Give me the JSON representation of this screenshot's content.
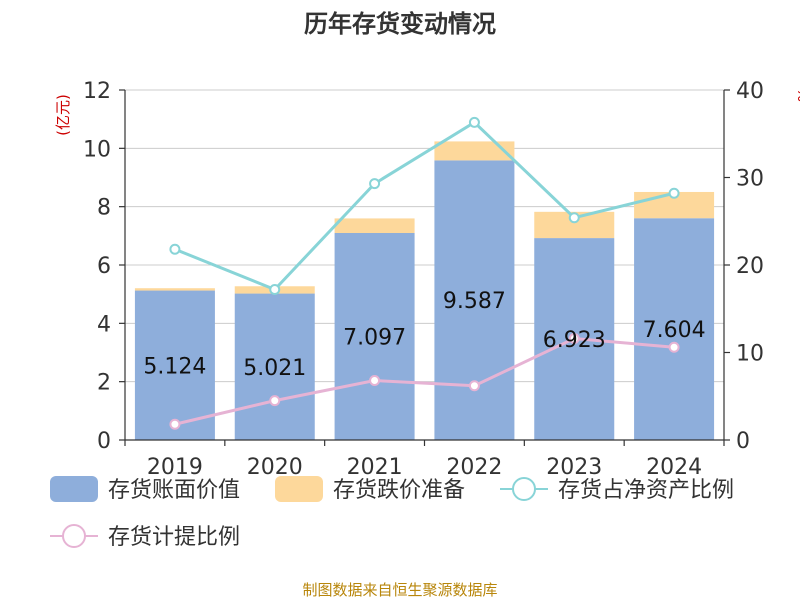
{
  "chart_data": {
    "type": "bar",
    "title": "历年存货变动情况",
    "categories": [
      "2019",
      "2020",
      "2021",
      "2022",
      "2023",
      "2024"
    ],
    "left_axis": {
      "unit": "(亿元)",
      "ylim": [
        0,
        12
      ],
      "ticks": [
        "0",
        "2",
        "4",
        "6",
        "8",
        "10",
        "12"
      ]
    },
    "right_axis": {
      "unit": "%",
      "ylim": [
        0,
        40
      ],
      "ticks": [
        "0",
        "10",
        "20",
        "30",
        "40"
      ]
    },
    "series": [
      {
        "name": "存货账面价值",
        "kind": "bar",
        "axis": "left",
        "color": "#8eaedb",
        "values": [
          5.124,
          5.021,
          7.097,
          9.587,
          6.923,
          7.604
        ],
        "labels": [
          "5.124",
          "5.021",
          "7.097",
          "9.587",
          "6.923",
          "7.604"
        ]
      },
      {
        "name": "存货跌价准备",
        "kind": "bar-stacked",
        "axis": "left",
        "color": "#fdd89b",
        "values": [
          0.08,
          0.25,
          0.5,
          0.65,
          0.9,
          0.9
        ]
      },
      {
        "name": "存货占净资产比例",
        "kind": "line",
        "axis": "right",
        "color": "#88d4d7",
        "values": [
          21.8,
          17.2,
          29.3,
          36.3,
          25.4,
          28.2
        ]
      },
      {
        "name": "存货计提比例",
        "kind": "line",
        "axis": "right",
        "color": "#e6b3d4",
        "values": [
          1.8,
          4.5,
          6.8,
          6.2,
          11.6,
          10.6
        ]
      }
    ],
    "grid": true,
    "legend": "bottom"
  },
  "source": "制图数据来自恒生聚源数据库"
}
